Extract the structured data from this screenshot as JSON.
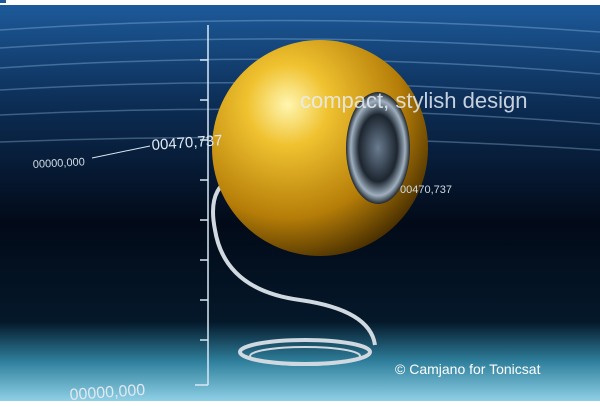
{
  "labels": {
    "tagline": "compact, stylish design",
    "readout_upper": "00470,737",
    "readout_left": "00000,000",
    "readout_right": "00470,737",
    "readout_bottom": "00000,000"
  },
  "credit": "© Camjano for Tonicsat"
}
